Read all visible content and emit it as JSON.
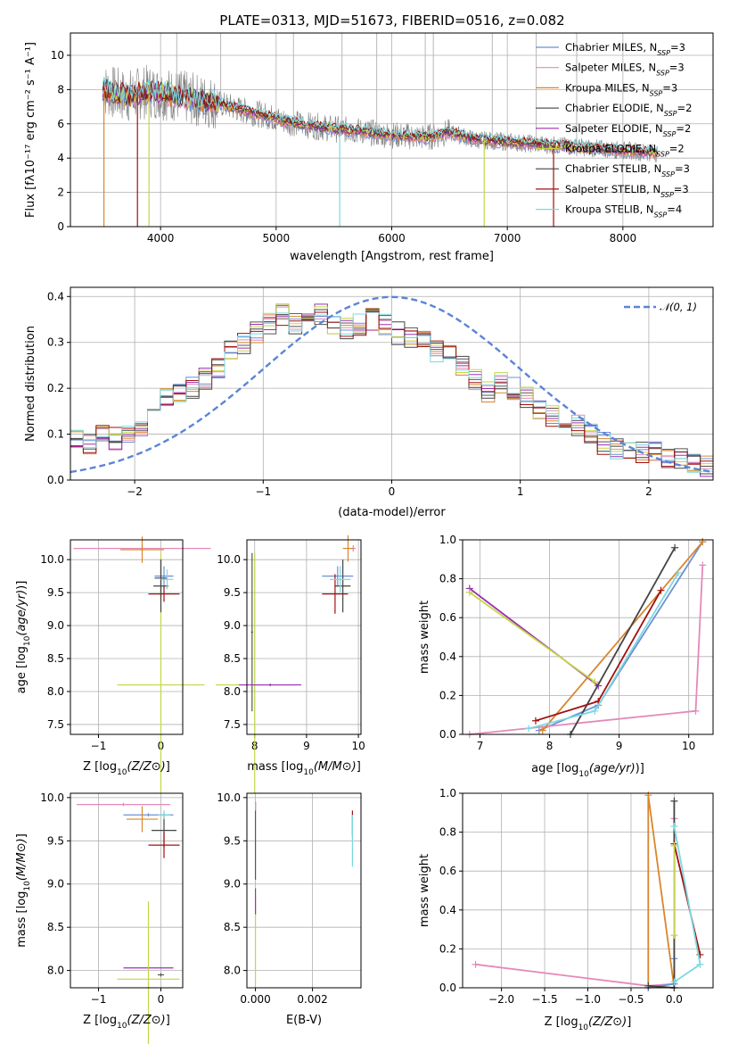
{
  "figure_title": "PLATE=0313, MJD=51673, FIBERID=0516, z=0.082",
  "colors": {
    "Chabrier MILES": "#6b8fd8",
    "Salpeter MILES": "#e489b8",
    "Kroupa MILES": "#d9862d",
    "Chabrier ELODIE": "#555555",
    "Salpeter ELODIE": "#9b30b0",
    "Kroupa ELODIE": "#c5d646",
    "Chabrier STELIB": "#444444",
    "Salpeter STELIB": "#a01010",
    "Kroupa STELIB": "#7cd8e0",
    "data": "#808080",
    "gauss": "#5b84d8"
  },
  "chart_data": [
    {
      "id": "spectrum",
      "type": "line",
      "title": "PLATE=0313, MJD=51673, FIBERID=0516, z=0.082",
      "xlabel": "wavelength [Angstrom, rest frame]",
      "ylabel": "Flux [fλ10⁻¹⁷ erg cm⁻² s⁻¹ A⁻¹]",
      "xlim": [
        3220,
        8780
      ],
      "ylim": [
        0,
        11.3
      ],
      "xticks": [
        "4000",
        "5000",
        "6000",
        "7000",
        "8000"
      ],
      "yticks": [
        "0",
        "2",
        "4",
        "6",
        "8",
        "10"
      ],
      "legend_position": "right",
      "legend": [
        {
          "name": "Chabrier MILES, N",
          "sub": "SSP",
          "tail": "=3"
        },
        {
          "name": "Salpeter MILES, N",
          "sub": "SSP",
          "tail": "=3"
        },
        {
          "name": "Kroupa MILES, N",
          "sub": "SSP",
          "tail": "=3"
        },
        {
          "name": "Chabrier ELODIE, N",
          "sub": "SSP",
          "tail": "=2"
        },
        {
          "name": "Salpeter ELODIE, N",
          "sub": "SSP",
          "tail": "=2"
        },
        {
          "name": "Kroupa ELODIE, N",
          "sub": "SSP",
          "tail": "=2"
        },
        {
          "name": "Chabrier STELIB, N",
          "sub": "SSP",
          "tail": "=3"
        },
        {
          "name": "Salpeter STELIB, N",
          "sub": "SSP",
          "tail": "=3"
        },
        {
          "name": "Kroupa STELIB, N",
          "sub": "SSP",
          "tail": "=4"
        }
      ],
      "continuum": {
        "x": [
          3500,
          3700,
          3900,
          4100,
          4300,
          4500,
          4700,
          4900,
          5100,
          5300,
          5500,
          5700,
          5900,
          6100,
          6300,
          6500,
          6700,
          6900,
          7100,
          7300,
          7500,
          7700,
          7900,
          8100,
          8300
        ],
        "y": [
          8.0,
          7.6,
          7.9,
          7.7,
          7.4,
          7.2,
          6.8,
          6.5,
          6.1,
          5.9,
          5.7,
          5.6,
          5.4,
          5.3,
          5.2,
          5.5,
          5.1,
          5.0,
          4.9,
          4.8,
          4.7,
          4.6,
          4.5,
          4.4,
          4.3
        ]
      }
    },
    {
      "id": "residuals",
      "type": "line",
      "xlabel": "(data-model)/error",
      "ylabel": "Normed distribution",
      "xlim": [
        -2.5,
        2.5
      ],
      "ylim": [
        0,
        0.42
      ],
      "xticks": [
        "−2",
        "−1",
        "0",
        "1",
        "2"
      ],
      "yticks": [
        "0.0",
        "0.1",
        "0.2",
        "0.3",
        "0.4"
      ],
      "legend": "𝒩(0, 1)",
      "legend_position": "top-right",
      "bin_width": 0.1,
      "base_histogram": [
        0.09,
        0.08,
        0.1,
        0.09,
        0.1,
        0.12,
        0.14,
        0.18,
        0.19,
        0.2,
        0.22,
        0.24,
        0.28,
        0.3,
        0.32,
        0.34,
        0.36,
        0.34,
        0.35,
        0.36,
        0.34,
        0.33,
        0.34,
        0.35,
        0.34,
        0.32,
        0.31,
        0.3,
        0.28,
        0.27,
        0.25,
        0.22,
        0.19,
        0.21,
        0.2,
        0.18,
        0.15,
        0.14,
        0.13,
        0.12,
        0.1,
        0.08,
        0.07,
        0.07,
        0.06,
        0.06,
        0.05,
        0.05,
        0.04,
        0.03
      ]
    },
    {
      "id": "age_vs_Z",
      "type": "scatter",
      "xlabel": "Z [log10(Z/Z⊙)]",
      "ylabel": "age  [log10(age/yr)]",
      "xlim": [
        -1.45,
        0.35
      ],
      "ylim": [
        7.35,
        10.3
      ],
      "xticks": [
        "−1",
        "0"
      ],
      "yticks": [
        "7.5",
        "8.0",
        "8.5",
        "9.0",
        "9.5",
        "10.0"
      ],
      "points": [
        {
          "model": "Chabrier MILES",
          "x": 0.05,
          "y": 9.75,
          "xerr": 0.15,
          "yerr": 0.15
        },
        {
          "model": "Salpeter MILES",
          "x": -0.3,
          "y": 10.17,
          "xerr": 1.1,
          "yerr": 0.05
        },
        {
          "model": "Kroupa MILES",
          "x": -0.3,
          "y": 10.15,
          "xerr": 0.35,
          "yerr": 0.2
        },
        {
          "model": "Chabrier ELODIE",
          "x": 0.0,
          "y": 9.72,
          "xerr": 0.1,
          "yerr": 0.3
        },
        {
          "model": "Kroupa ELODIE",
          "x": 0.0,
          "y": 8.1,
          "xerr": 0.7,
          "yerr": 2.0
        },
        {
          "model": "Chabrier STELIB",
          "x": 0.0,
          "y": 9.6,
          "xerr": 0.12,
          "yerr": 0.4
        },
        {
          "model": "Salpeter STELIB",
          "x": 0.05,
          "y": 9.48,
          "xerr": 0.25,
          "yerr": 0.12
        },
        {
          "model": "Kroupa STELIB",
          "x": 0.1,
          "y": 9.7,
          "xerr": 0.1,
          "yerr": 0.15
        }
      ]
    },
    {
      "id": "age_vs_mass",
      "type": "scatter",
      "xlabel": "mass [log10(M/M⊙)]",
      "xlim": [
        7.85,
        10.05
      ],
      "ylim": [
        7.35,
        10.3
      ],
      "xticks": [
        "8",
        "9",
        "10"
      ],
      "yticks": [
        "7.5",
        "8.0",
        "8.5",
        "9.0",
        "9.5",
        "10.0"
      ],
      "points": [
        {
          "model": "Chabrier MILES",
          "x": 9.6,
          "y": 9.75,
          "xerr": 0.3,
          "yerr": 0.15
        },
        {
          "model": "Salpeter MILES",
          "x": 9.9,
          "y": 10.17,
          "xerr": 0.05,
          "yerr": 0.05
        },
        {
          "model": "Kroupa MILES",
          "x": 9.8,
          "y": 10.17,
          "xerr": 0.1,
          "yerr": 0.2
        },
        {
          "model": "Chabrier ELODIE",
          "x": 7.95,
          "y": 8.9,
          "xerr": 0.02,
          "yerr": 1.2
        },
        {
          "model": "Kroupa ELODIE",
          "x": 8.0,
          "y": 8.1,
          "xerr": 0.75,
          "yerr": 2.0
        },
        {
          "model": "Salpeter ELODIE",
          "x": 8.3,
          "y": 8.1,
          "xerr": 0.6,
          "yerr": 0.02
        },
        {
          "model": "Chabrier STELIB",
          "x": 9.7,
          "y": 9.6,
          "xerr": 0.15,
          "yerr": 0.4
        },
        {
          "model": "Salpeter STELIB",
          "x": 9.55,
          "y": 9.48,
          "xerr": 0.25,
          "yerr": 0.3
        },
        {
          "model": "Kroupa STELIB",
          "x": 9.65,
          "y": 9.7,
          "xerr": 0.2,
          "yerr": 0.2
        }
      ]
    },
    {
      "id": "weight_vs_age",
      "type": "line",
      "xlabel": "age  [log10(age/yr)]",
      "ylabel": "mass weight",
      "xlim": [
        6.75,
        10.35
      ],
      "ylim": [
        0,
        1.0
      ],
      "xticks": [
        "7",
        "8",
        "9",
        "10"
      ],
      "yticks": [
        "0.0",
        "0.2",
        "0.4",
        "0.6",
        "0.8",
        "1.0"
      ],
      "series": [
        {
          "model": "Chabrier MILES",
          "x": [
            7.85,
            8.7,
            10.2
          ],
          "y": [
            0.02,
            0.15,
            0.99
          ]
        },
        {
          "model": "Salpeter MILES",
          "x": [
            6.85,
            10.1,
            10.2
          ],
          "y": [
            0.0,
            0.12,
            0.87
          ]
        },
        {
          "model": "Kroupa MILES",
          "x": [
            7.9,
            10.2
          ],
          "y": [
            0.02,
            0.99
          ]
        },
        {
          "model": "Salpeter ELODIE",
          "x": [
            6.85,
            8.7
          ],
          "y": [
            0.75,
            0.25
          ]
        },
        {
          "model": "Kroupa ELODIE",
          "x": [
            6.85,
            8.65
          ],
          "y": [
            0.73,
            0.27
          ]
        },
        {
          "model": "Chabrier STELIB",
          "x": [
            8.3,
            9.8
          ],
          "y": [
            0.0,
            0.96
          ]
        },
        {
          "model": "Salpeter STELIB",
          "x": [
            7.8,
            8.7,
            9.6
          ],
          "y": [
            0.07,
            0.17,
            0.74
          ]
        },
        {
          "model": "Kroupa STELIB",
          "x": [
            7.7,
            8.65,
            9.85
          ],
          "y": [
            0.03,
            0.12,
            0.83
          ]
        }
      ]
    },
    {
      "id": "mass_vs_Z",
      "type": "scatter",
      "xlabel": "Z [log10(Z/Z⊙)]",
      "ylabel": "mass [log10(M/M⊙)]",
      "xlim": [
        -1.45,
        0.35
      ],
      "ylim": [
        7.8,
        10.05
      ],
      "xticks": [
        "−1",
        "0"
      ],
      "yticks": [
        "8.0",
        "8.5",
        "9.0",
        "9.5",
        "10.0"
      ],
      "points": [
        {
          "model": "Chabrier MILES",
          "x": -0.2,
          "y": 9.8,
          "xerr": 0.4,
          "yerr": 0.02
        },
        {
          "model": "Salpeter MILES",
          "x": -0.6,
          "y": 9.92,
          "xerr": 0.75,
          "yerr": 0.02
        },
        {
          "model": "Kroupa MILES",
          "x": -0.3,
          "y": 9.75,
          "xerr": 0.25,
          "yerr": 0.15
        },
        {
          "model": "Chabrier ELODIE",
          "x": 0.0,
          "y": 7.95,
          "xerr": 0.05,
          "yerr": 0.02
        },
        {
          "model": "Salpeter ELODIE",
          "x": -0.2,
          "y": 8.03,
          "xerr": 0.4,
          "yerr": 0.02
        },
        {
          "model": "Kroupa ELODIE",
          "x": -0.2,
          "y": 7.9,
          "xerr": 0.5,
          "yerr": 0.9
        },
        {
          "model": "Chabrier STELIB",
          "x": 0.05,
          "y": 9.62,
          "xerr": 0.2,
          "yerr": 0.2
        },
        {
          "model": "Salpeter STELIB",
          "x": 0.05,
          "y": 9.45,
          "xerr": 0.25,
          "yerr": 0.15
        },
        {
          "model": "Kroupa STELIB",
          "x": 0.05,
          "y": 9.8,
          "xerr": 0.1,
          "yerr": 0.05
        }
      ]
    },
    {
      "id": "mass_vs_EBV",
      "type": "scatter",
      "xlabel": "E(B-V)",
      "xlim": [
        -0.0003,
        0.0037
      ],
      "ylim": [
        7.8,
        10.05
      ],
      "xticks": [
        "0.000",
        "0.002"
      ],
      "yticks": [
        "8.0",
        "8.5",
        "9.0",
        "9.5",
        "10.0"
      ],
      "points": [
        {
          "model": "Chabrier ELODIE",
          "x": 0.0,
          "y": 9.5,
          "xerr": 0,
          "yerr": 0.45
        },
        {
          "model": "Salpeter MILES",
          "x": 0.0,
          "y": 9.9,
          "xerr": 0,
          "yerr": 0.05
        },
        {
          "model": "Kroupa ELODIE",
          "x": 0.0,
          "y": 8.35,
          "xerr": 0,
          "yerr": 0.5
        },
        {
          "model": "Salpeter ELODIE",
          "x": 0.0,
          "y": 8.8,
          "xerr": 0,
          "yerr": 0.15
        },
        {
          "model": "Salpeter STELIB",
          "x": 0.0034,
          "y": 9.7,
          "xerr": 0,
          "yerr": 0.15
        },
        {
          "model": "Kroupa STELIB",
          "x": 0.0034,
          "y": 9.5,
          "xerr": 0,
          "yerr": 0.3
        }
      ]
    },
    {
      "id": "weight_vs_Z",
      "type": "line",
      "xlabel": "Z [log10(Z/Z⊙)]",
      "ylabel": "mass weight",
      "xlim": [
        -2.45,
        0.45
      ],
      "ylim": [
        0,
        1.0
      ],
      "xticks": [
        "−2.0",
        "−1.5",
        "−1.0",
        "−0.5",
        "0.0"
      ],
      "yticks": [
        "0.0",
        "0.2",
        "0.4",
        "0.6",
        "0.8",
        "1.0"
      ],
      "series": [
        {
          "model": "Salpeter MILES",
          "x": [
            -2.3,
            -0.3,
            0.0,
            0.0
          ],
          "y": [
            0.12,
            0.01,
            0.02,
            0.87
          ]
        },
        {
          "model": "Kroupa MILES",
          "x": [
            -0.3,
            -0.3,
            0.0
          ],
          "y": [
            0.0,
            0.99,
            0.0
          ]
        },
        {
          "model": "Chabrier MILES",
          "x": [
            -0.3,
            0.0,
            0.0
          ],
          "y": [
            0.0,
            0.02,
            0.15
          ]
        },
        {
          "model": "Chabrier STELIB",
          "x": [
            -0.3,
            0.0,
            0.0
          ],
          "y": [
            0.01,
            0.0,
            0.96
          ]
        },
        {
          "model": "Salpeter STELIB",
          "x": [
            0.0,
            0.3
          ],
          "y": [
            0.74,
            0.17
          ]
        },
        {
          "model": "Kroupa STELIB",
          "x": [
            0.0,
            0.3,
            0.0
          ],
          "y": [
            0.83,
            0.12,
            0.03
          ]
        },
        {
          "model": "Kroupa ELODIE",
          "x": [
            0.0,
            0.0
          ],
          "y": [
            0.27,
            0.73
          ]
        }
      ]
    }
  ]
}
